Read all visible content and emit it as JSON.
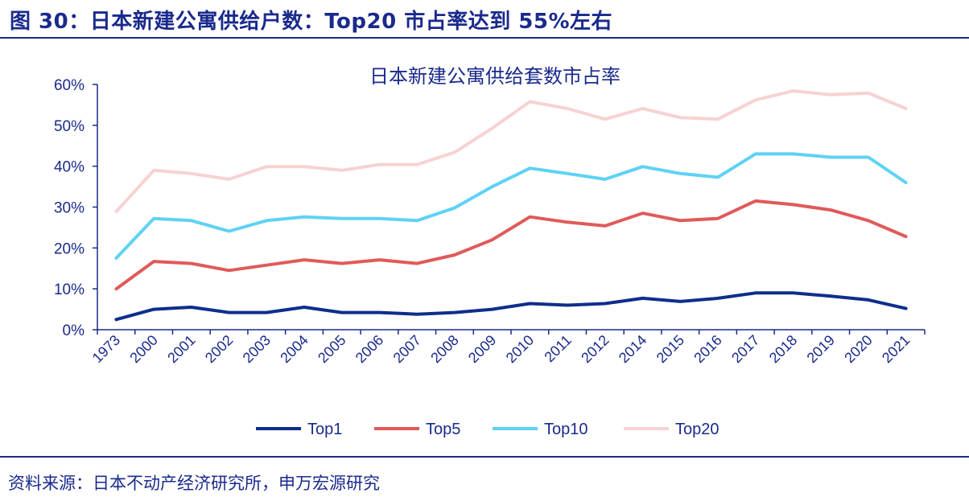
{
  "figure_title": "图 30：日本新建公寓供给户数：Top20 市占率达到 55%左右",
  "source": "资料来源：日本不动产经济研究所，申万宏源研究",
  "colors": {
    "brand": "#1a2a8c",
    "Top1": "#0f2e8c",
    "Top5": "#e05a5a",
    "Top10": "#5ed2f5",
    "Top20": "#f7d2d2"
  },
  "chart_data": {
    "type": "line",
    "title": "日本新建公寓供给套数市占率",
    "xlabel": "",
    "ylabel": "",
    "ylim": [
      0,
      60
    ],
    "yticks": [
      "0%",
      "10%",
      "20%",
      "30%",
      "40%",
      "50%",
      "60%"
    ],
    "grid": false,
    "legend": "bottom",
    "x": [
      "1973",
      "2000",
      "2001",
      "2002",
      "2003",
      "2004",
      "2005",
      "2006",
      "2007",
      "2008",
      "2009",
      "2010",
      "2011",
      "2012",
      "2014",
      "2015",
      "2016",
      "2017",
      "2018",
      "2019",
      "2020",
      "2021"
    ],
    "series": [
      {
        "name": "Top1",
        "values": [
          2.5,
          5.0,
          5.5,
          4.2,
          4.2,
          5.5,
          4.2,
          4.2,
          3.8,
          4.2,
          5.0,
          6.4,
          6.0,
          6.4,
          7.7,
          6.9,
          7.7,
          9.0,
          9.0,
          8.2,
          7.3,
          5.2
        ]
      },
      {
        "name": "Top5",
        "values": [
          10.0,
          16.7,
          16.2,
          14.5,
          15.8,
          17.1,
          16.2,
          17.1,
          16.2,
          18.3,
          22.0,
          27.6,
          26.3,
          25.4,
          28.5,
          26.7,
          27.2,
          31.5,
          30.6,
          29.3,
          26.7,
          22.8
        ]
      },
      {
        "name": "Top10",
        "values": [
          17.5,
          27.2,
          26.7,
          24.1,
          26.7,
          27.6,
          27.2,
          27.2,
          26.7,
          29.8,
          35.0,
          39.5,
          38.2,
          36.8,
          39.9,
          38.2,
          37.3,
          43.0,
          43.0,
          42.2,
          42.2,
          36.0
        ]
      },
      {
        "name": "Top20",
        "values": [
          28.9,
          39.0,
          38.2,
          36.8,
          39.9,
          39.9,
          39.0,
          40.4,
          40.4,
          43.4,
          49.3,
          55.8,
          54.1,
          51.5,
          54.1,
          51.9,
          51.5,
          56.2,
          58.4,
          57.5,
          57.9,
          54.1
        ]
      }
    ]
  }
}
